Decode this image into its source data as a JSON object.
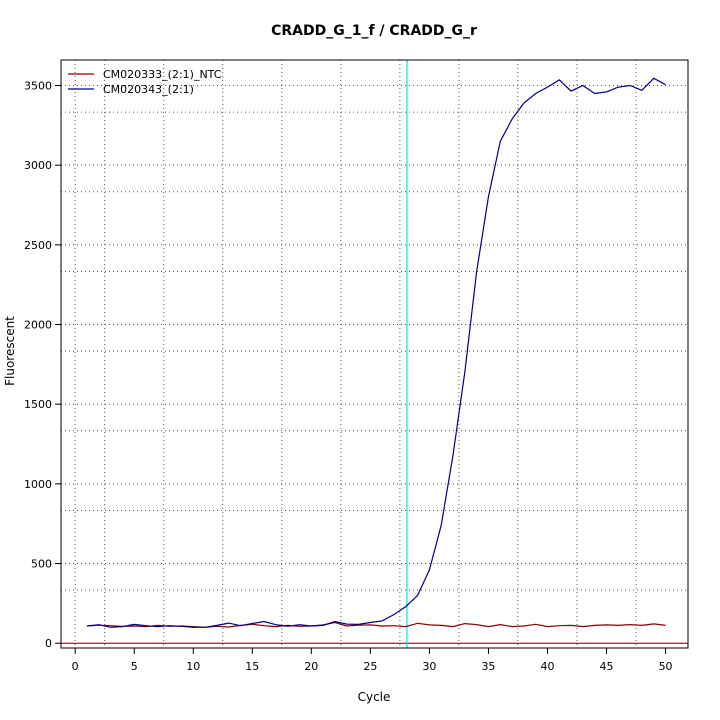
{
  "chart_data": {
    "type": "line",
    "title": "CRADD_G_1_f / CRADD_G_r",
    "xlabel": "Cycle",
    "ylabel": "Fluorescent",
    "xlim": [
      -1.2,
      51.9
    ],
    "ylim": [
      -30,
      3660
    ],
    "xticks": [
      0,
      5,
      10,
      15,
      20,
      25,
      30,
      35,
      40,
      45,
      50
    ],
    "yticks": [
      0,
      500,
      1000,
      1500,
      2000,
      2500,
      3000,
      3500
    ],
    "x_grid_dotted": [
      0,
      2.5,
      7.5,
      12.5,
      17.5,
      22.5,
      27.5,
      32.5,
      37.5,
      42.5,
      47.5
    ],
    "y_grid_dotted": [
      0,
      333,
      500,
      833,
      1000,
      1333,
      1500,
      1833,
      2000,
      2333,
      2500,
      2833,
      3000,
      3333,
      3500
    ],
    "threshold_cycle": 28.1,
    "threshold_color": "#00e5ee",
    "baseline_y": 0,
    "baseline_color": "#8b0000",
    "legend_position": "top-left",
    "x": [
      1,
      2,
      3,
      4,
      5,
      6,
      7,
      8,
      9,
      10,
      11,
      12,
      13,
      14,
      15,
      16,
      17,
      18,
      19,
      20,
      21,
      22,
      23,
      24,
      25,
      26,
      27,
      28,
      29,
      30,
      31,
      32,
      33,
      34,
      35,
      36,
      37,
      38,
      39,
      40,
      41,
      42,
      43,
      44,
      45,
      46,
      47,
      48,
      49,
      50
    ],
    "series": [
      {
        "name": "CM020333_(2:1)_NTC",
        "color": "#8b0000",
        "values": [
          108,
          113,
          110,
          106,
          108,
          104,
          112,
          106,
          108,
          104,
          100,
          106,
          102,
          112,
          119,
          110,
          104,
          112,
          106,
          108,
          115,
          130,
          108,
          113,
          115,
          108,
          110,
          104,
          125,
          115,
          112,
          104,
          123,
          117,
          104,
          117,
          104,
          108,
          119,
          104,
          110,
          112,
          104,
          112,
          115,
          112,
          117,
          112,
          121,
          112
        ]
      },
      {
        "name": "CM020343_(2:1)",
        "color": "#00008b",
        "values": [
          108,
          116,
          100,
          104,
          118,
          110,
          104,
          110,
          106,
          100,
          100,
          112,
          126,
          110,
          124,
          136,
          116,
          106,
          116,
          108,
          112,
          136,
          120,
          118,
          130,
          140,
          180,
          230,
          300,
          460,
          740,
          1180,
          1700,
          2330,
          2800,
          3150,
          3290,
          3390,
          3450,
          3490,
          3535,
          3465,
          3500,
          3450,
          3460,
          3490,
          3500,
          3470,
          3545,
          3505
        ]
      }
    ]
  }
}
